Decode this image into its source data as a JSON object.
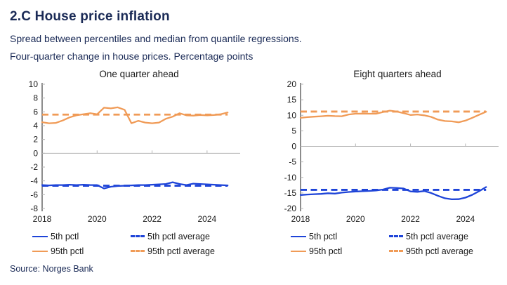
{
  "header": {
    "title": "2.C House price inflation",
    "subtitle_line1": "Spread between percentiles and median from quantile regressions.",
    "subtitle_line2": "Four-quarter change in house prices. Percentage points"
  },
  "legend": {
    "p5": "5th pctl",
    "p5_avg": "5th pctl average",
    "p95": "95th pctl",
    "p95_avg": "95th pctl average"
  },
  "source": "Source: Norges Bank",
  "colors": {
    "navy": "#1a2a56",
    "blue": "#1e44d8",
    "orange": "#f09b57",
    "axis": "#3f3f3f",
    "zero_line": "#b4b4b4",
    "tick_text": "#1a1a1a"
  },
  "chart_data": [
    {
      "type": "line",
      "title": "One quarter ahead",
      "x_start": 2018,
      "x_step": 0.25,
      "x_range": [
        2018,
        2025
      ],
      "xticks": [
        2018,
        2020,
        2022,
        2024
      ],
      "ylim": [
        -8,
        10
      ],
      "yticks": [
        10,
        8,
        6,
        4,
        2,
        0,
        -2,
        -4,
        -6,
        -8
      ],
      "grid": false,
      "legend_position": "bottom",
      "series": [
        {
          "name": "5th pctl",
          "color_key": "blue",
          "style": "solid",
          "values": [
            -4.6,
            -4.65,
            -4.6,
            -4.6,
            -4.55,
            -4.6,
            -4.55,
            -4.6,
            -4.6,
            -5.1,
            -4.85,
            -4.75,
            -4.7,
            -4.65,
            -4.6,
            -4.6,
            -4.55,
            -4.5,
            -4.45,
            -4.2,
            -4.45,
            -4.6,
            -4.4,
            -4.45,
            -4.5,
            -4.55,
            -4.6,
            -4.65
          ]
        },
        {
          "name": "95th pctl",
          "color_key": "orange",
          "style": "solid",
          "values": [
            4.5,
            4.35,
            4.4,
            4.75,
            5.2,
            5.5,
            5.65,
            5.8,
            5.65,
            6.6,
            6.5,
            6.65,
            6.3,
            4.35,
            4.7,
            4.45,
            4.35,
            4.45,
            5.0,
            5.3,
            5.8,
            5.5,
            5.45,
            5.55,
            5.5,
            5.55,
            5.65,
            5.9
          ]
        },
        {
          "name": "5th pctl average",
          "color_key": "blue",
          "style": "dashed",
          "average": -4.7
        },
        {
          "name": "95th pctl average",
          "color_key": "orange",
          "style": "dashed",
          "average": 5.6
        }
      ]
    },
    {
      "type": "line",
      "title": "Eight quarters ahead",
      "x_start": 2018,
      "x_step": 0.25,
      "x_range": [
        2018,
        2025
      ],
      "xticks": [
        2018,
        2020,
        2022,
        2024
      ],
      "ylim": [
        -20,
        20
      ],
      "yticks": [
        20,
        15,
        10,
        5,
        0,
        -5,
        -10,
        -15,
        -20
      ],
      "grid": false,
      "legend_position": "bottom",
      "series": [
        {
          "name": "5th pctl",
          "color_key": "blue",
          "style": "solid",
          "values": [
            -15.65,
            -15.5,
            -15.4,
            -15.3,
            -15.1,
            -15.2,
            -14.9,
            -14.7,
            -14.55,
            -14.45,
            -14.35,
            -14.2,
            -13.9,
            -13.3,
            -13.4,
            -13.55,
            -14.5,
            -14.65,
            -14.4,
            -15.0,
            -15.9,
            -16.7,
            -17.05,
            -17.0,
            -16.5,
            -15.6,
            -14.4,
            -13.1
          ]
        },
        {
          "name": "95th pctl",
          "color_key": "orange",
          "style": "solid",
          "values": [
            9.2,
            9.4,
            9.55,
            9.7,
            9.85,
            9.75,
            9.7,
            10.25,
            10.5,
            10.55,
            10.5,
            10.5,
            11.05,
            11.5,
            11.2,
            10.7,
            10.1,
            10.25,
            10.0,
            9.5,
            8.6,
            8.15,
            8.05,
            7.75,
            8.3,
            9.2,
            10.2,
            11.15
          ]
        },
        {
          "name": "5th pctl average",
          "color_key": "blue",
          "style": "dashed",
          "average": -14.0
        },
        {
          "name": "95th pctl average",
          "color_key": "orange",
          "style": "dashed",
          "average": 11.2
        }
      ]
    }
  ]
}
